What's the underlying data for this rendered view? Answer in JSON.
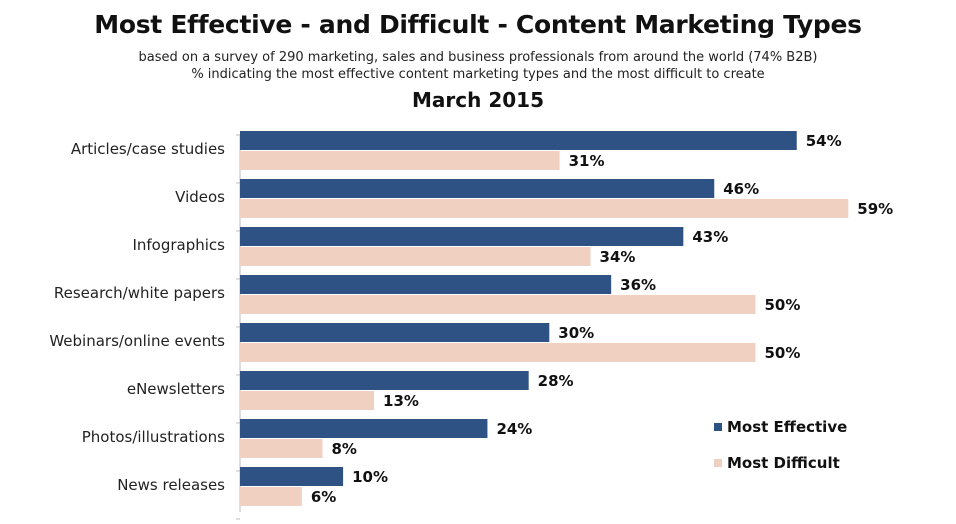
{
  "chart_data": {
    "type": "bar",
    "orientation": "horizontal",
    "title": "Most Effective - and Difficult - Content Marketing Types",
    "subtitle_lines": [
      "based on a survey of 290 marketing, sales and business professionals from around the world (74% B2B)",
      "% indicating the most effective content marketing types and the most difficult to create"
    ],
    "date_label": "March 2015",
    "categories": [
      "Articles/case studies",
      "Videos",
      "Infographics",
      "Research/white papers",
      "Webinars/online events",
      "eNewsletters",
      "Photos/illustrations",
      "News releases"
    ],
    "series": [
      {
        "name": "Most Effective",
        "color": "#2e5283",
        "values": [
          54,
          46,
          43,
          36,
          30,
          28,
          24,
          10
        ]
      },
      {
        "name": "Most Difficult",
        "color": "#f0d0c0",
        "values": [
          31,
          59,
          34,
          50,
          50,
          13,
          8,
          6
        ]
      }
    ],
    "value_suffix": "%",
    "xlim": [
      0,
      60
    ],
    "grid": false,
    "legend_position": "bottom-right"
  }
}
